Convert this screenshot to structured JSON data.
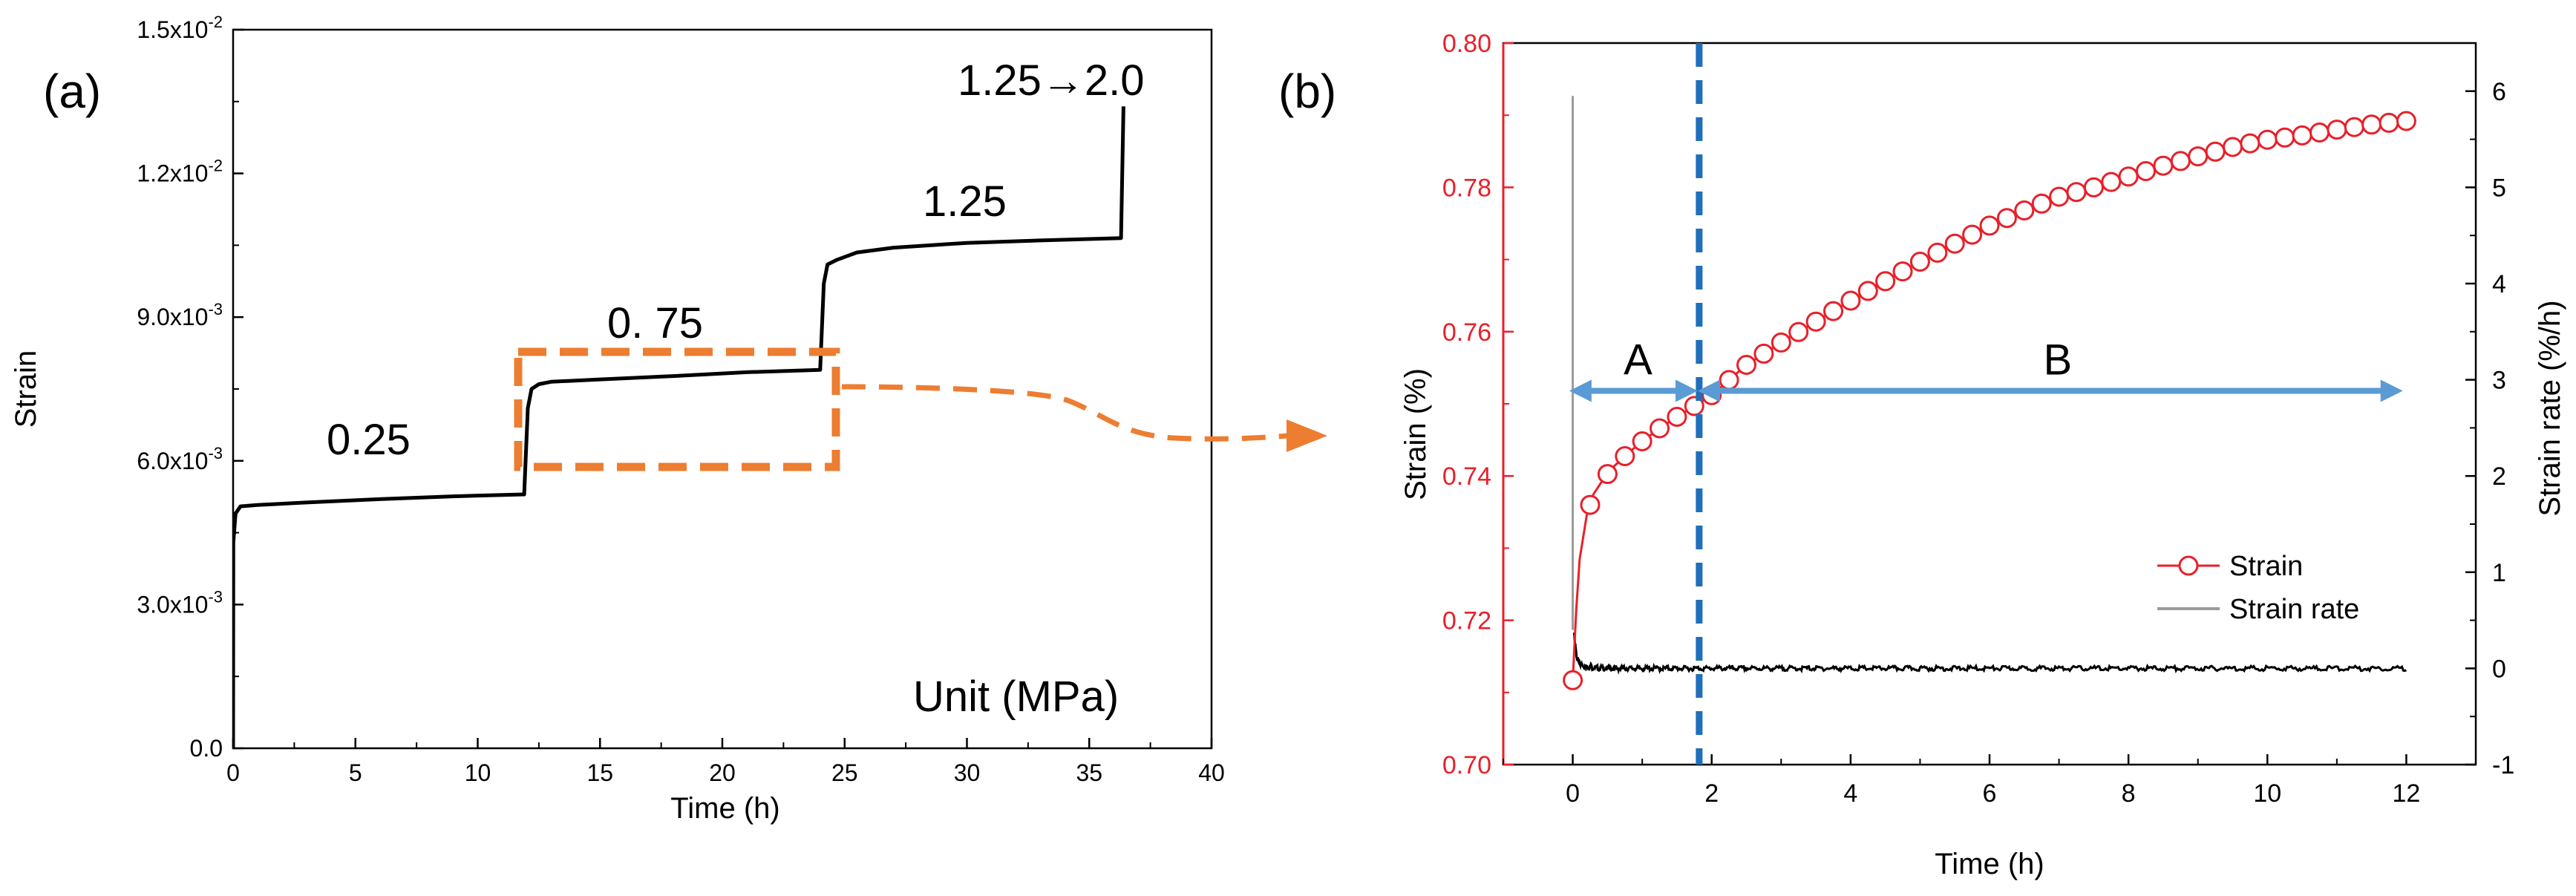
{
  "chart_data": [
    {
      "panel_label": "(a)",
      "type": "line",
      "title": "",
      "xlabel": "Time (h)",
      "ylabel": "Strain",
      "xlim": [
        0,
        40
      ],
      "ylim": [
        0,
        0.015
      ],
      "x_ticks": [
        "0",
        "5",
        "10",
        "15",
        "20",
        "25",
        "30",
        "35",
        "40"
      ],
      "y_ticks": [
        {
          "mant": "0.0",
          "exp": ""
        },
        {
          "mant": "3.0x10",
          "exp": "-3"
        },
        {
          "mant": "6.0x10",
          "exp": "-3"
        },
        {
          "mant": "9.0x10",
          "exp": "-3"
        },
        {
          "mant": "1.2x10",
          "exp": "-2"
        },
        {
          "mant": "1.5x10",
          "exp": "-2"
        }
      ],
      "series": [
        {
          "name": "Strain",
          "color": "#000000",
          "x": [
            0,
            0.01,
            0.1,
            0.3,
            1,
            3,
            6,
            9,
            11.9,
            12.05,
            12.2,
            12.5,
            13,
            15,
            18,
            21,
            24,
            24.15,
            24.3,
            24.7,
            25.5,
            27,
            30,
            33,
            36.3,
            36.4
          ],
          "y": [
            0,
            0.0043,
            0.0049,
            0.00505,
            0.00508,
            0.00513,
            0.0052,
            0.00526,
            0.0053,
            0.0071,
            0.0075,
            0.0076,
            0.00765,
            0.0077,
            0.00777,
            0.00785,
            0.0079,
            0.0097,
            0.0101,
            0.0102,
            0.01035,
            0.01045,
            0.01055,
            0.0106,
            0.01065,
            0.0134
          ]
        }
      ],
      "annotations": [
        {
          "text": "0.25"
        },
        {
          "text": "0. 75"
        },
        {
          "text": "1.25"
        },
        {
          "text": "1.25→2.0"
        },
        {
          "text": "Unit (MPa)"
        }
      ]
    },
    {
      "panel_label": "(b)",
      "type": "line+scatter",
      "title": "",
      "xlabel": "Time (h)",
      "ylabel": "Strain (%)",
      "ylabel_right": "Strain rate (%/h)",
      "xlim": [
        -1,
        13
      ],
      "ylim": [
        0.7,
        0.8
      ],
      "ylim_right": [
        -1,
        6.5
      ],
      "x_ticks": [
        "0",
        "2",
        "4",
        "6",
        "8",
        "10",
        "12"
      ],
      "y_ticks": [
        "0.70",
        "0.72",
        "0.74",
        "0.76",
        "0.78",
        "0.80"
      ],
      "y_ticks_right": [
        "-1",
        "0",
        "1",
        "2",
        "3",
        "4",
        "5",
        "6"
      ],
      "series": [
        {
          "name": "Strain",
          "axis": "left",
          "color": "#e8202a",
          "x": [
            0,
            0.05,
            0.1,
            0.2,
            0.3,
            0.45,
            0.6,
            0.8,
            1.0,
            1.25,
            1.5,
            1.75,
            2.0,
            2.5,
            3,
            3.5,
            4,
            4.5,
            5,
            5.5,
            6,
            6.5,
            7,
            7.5,
            8,
            8.5,
            9,
            9.5,
            10,
            10.5,
            11,
            11.5,
            12
          ],
          "y": [
            0.7117,
            0.7215,
            0.7285,
            0.7345,
            0.7375,
            0.7397,
            0.7414,
            0.7432,
            0.7448,
            0.7466,
            0.7482,
            0.7497,
            0.7512,
            0.7554,
            0.7585,
            0.7614,
            0.7643,
            0.767,
            0.7697,
            0.7722,
            0.7747,
            0.7768,
            0.7787,
            0.78,
            0.7815,
            0.783,
            0.7843,
            0.7856,
            0.7866,
            0.7872,
            0.788,
            0.7887,
            0.7892
          ],
          "markers": [
            0,
            0.25,
            0.5,
            0.75,
            1.0,
            1.25,
            1.5,
            1.75,
            2.0,
            2.25,
            2.5,
            2.75,
            3.0,
            3.25,
            3.5,
            3.75,
            4.0,
            4.25,
            4.5,
            4.75,
            5.0,
            5.25,
            5.5,
            5.75,
            6.0,
            6.25,
            6.5,
            6.75,
            7.0,
            7.25,
            7.5,
            7.75,
            8.0,
            8.25,
            8.5,
            8.75,
            9.0,
            9.25,
            9.5,
            9.75,
            10.0,
            10.25,
            10.5,
            10.75,
            11.0,
            11.25,
            11.5,
            11.75,
            12.0
          ]
        },
        {
          "name": "Strain rate",
          "axis": "right",
          "color": "#000000",
          "legend_color": "#9a9a9a",
          "spike": {
            "x": 0.0,
            "y_top": 5.95,
            "y_bottom": 0.4,
            "color": "#9a9a9a"
          },
          "x": [
            0.02,
            0.05,
            0.08,
            0.12,
            0.18,
            0.3,
            0.5,
            12
          ],
          "y": [
            0.35,
            0.15,
            0.07,
            0.04,
            0.02,
            0.01,
            0.0,
            0.0
          ]
        }
      ],
      "annotations": [
        {
          "text": "A",
          "from_x": -0.05,
          "to_x": 1.8
        },
        {
          "text": "B",
          "from_x": 1.8,
          "to_x": 11.95
        },
        {
          "text": "vertical-dashed-line",
          "x": 1.82
        }
      ],
      "legend": [
        "Strain",
        "Strain rate"
      ],
      "legend_position": "bottom-right"
    }
  ]
}
